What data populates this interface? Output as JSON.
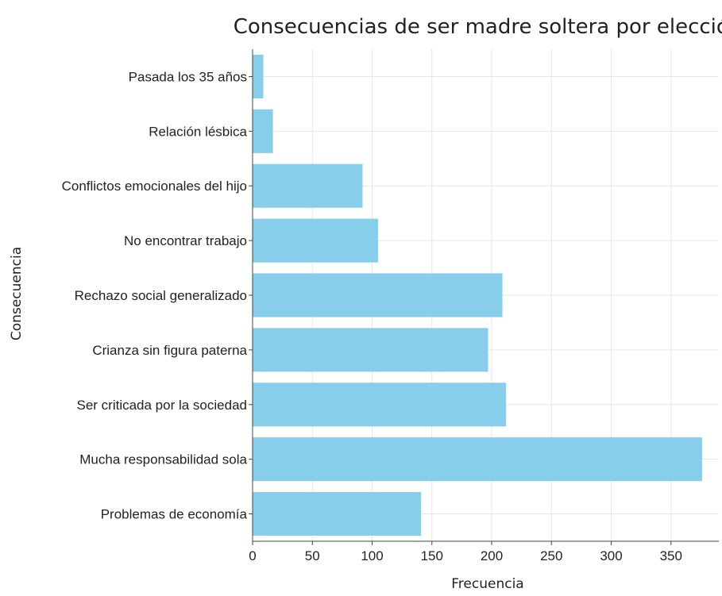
{
  "chart_data": {
    "type": "bar",
    "orientation": "horizontal",
    "title": "Consecuencias de ser madre soltera por elección",
    "xlabel": "Frecuencia",
    "ylabel": "Consecuencia",
    "categories": [
      "Problemas de economía",
      "Mucha responsabilidad sola",
      "Ser criticada por la sociedad",
      "Crianza sin figura paterna",
      "Rechazo social generalizado",
      "No encontrar trabajo",
      "Conflictos emocionales del hijo",
      "Relación lésbica",
      "Pasada los 35 años"
    ],
    "values": [
      141,
      376,
      212,
      197,
      209,
      105,
      92,
      17,
      9
    ],
    "xticks": [
      0,
      50,
      100,
      150,
      200,
      250,
      300,
      350
    ],
    "xlim": [
      0,
      390
    ],
    "grid": true,
    "bar_color": "#87ceeb"
  }
}
